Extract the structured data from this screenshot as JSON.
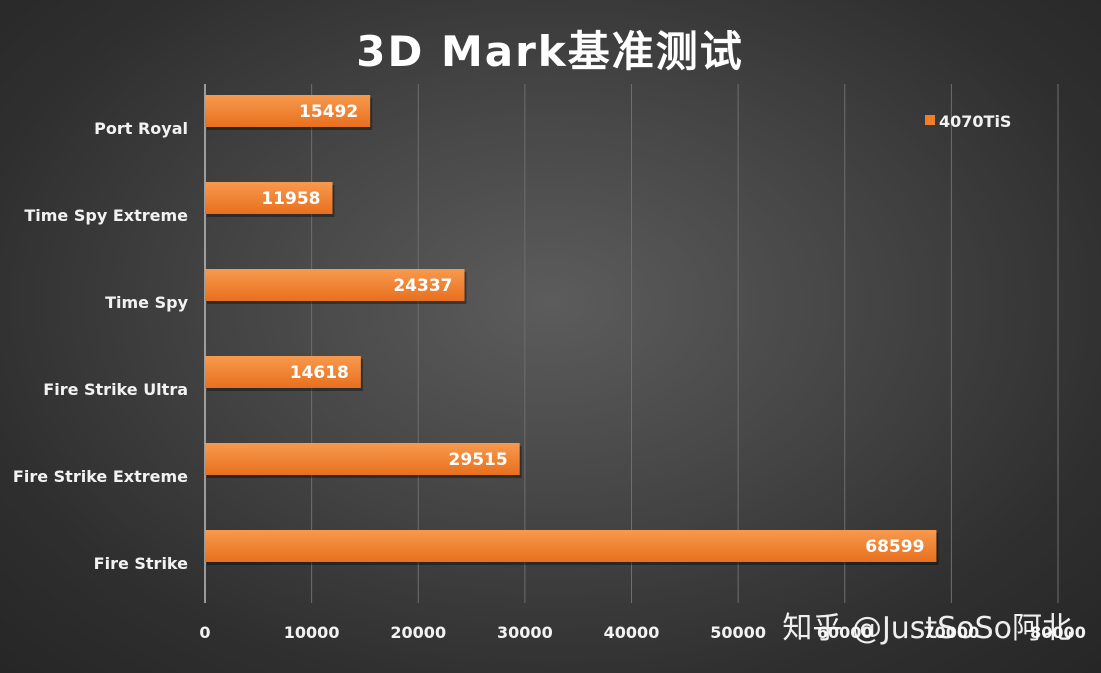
{
  "chart_data": {
    "type": "bar",
    "orientation": "horizontal",
    "title": "3D Mark基准测试",
    "categories": [
      "Port Royal",
      "Time Spy Extreme",
      "Time Spy",
      "Fire Strike Ultra",
      "Fire Strike Extreme",
      "Fire Strike"
    ],
    "series": [
      {
        "name": "4070TiS",
        "values": [
          15492,
          11958,
          24337,
          14618,
          29515,
          68599
        ],
        "color": "#f07f2c"
      }
    ],
    "xlim": [
      0,
      80000
    ],
    "xticks": [
      0,
      10000,
      20000,
      30000,
      40000,
      50000,
      60000,
      70000,
      80000
    ],
    "xtick_labels": [
      "0",
      "10000",
      "20000",
      "30000",
      "40000",
      "50000",
      "60000",
      "70000",
      "80000"
    ],
    "grid": true,
    "legend_position": "top-right",
    "data_labels": true
  },
  "watermark": "知乎 @JustSoSo阿北",
  "colors": {
    "bar": "#f07f2c",
    "grid": "#6e6e6e",
    "axis": "#bdbdbd",
    "text": "#f2f2f2"
  }
}
